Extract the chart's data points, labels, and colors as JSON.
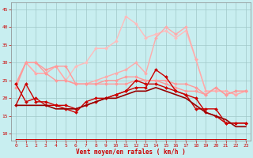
{
  "xlabel": "Vent moyen/en rafales ( km/h )",
  "xlim": [
    -0.5,
    23.5
  ],
  "ylim": [
    8,
    47
  ],
  "yticks": [
    10,
    15,
    20,
    25,
    30,
    35,
    40,
    45
  ],
  "xticks": [
    0,
    1,
    2,
    3,
    4,
    5,
    6,
    7,
    8,
    9,
    10,
    11,
    12,
    13,
    14,
    15,
    16,
    17,
    18,
    19,
    20,
    21,
    22,
    23
  ],
  "bg_color": "#c8eef0",
  "grid_color": "#a0c8c8",
  "lines": [
    {
      "x": [
        0,
        1,
        2,
        3,
        4,
        5,
        6,
        7,
        8,
        9,
        10,
        11,
        12,
        13,
        14,
        15,
        16,
        17,
        18,
        19,
        20,
        21,
        22,
        23
      ],
      "y": [
        24,
        30,
        27,
        27,
        29,
        25,
        29,
        30,
        34,
        34,
        36,
        43,
        41,
        37,
        38,
        39,
        37,
        39,
        31,
        22,
        22,
        22,
        21,
        22
      ],
      "color": "#ffbbbb",
      "lw": 1.0,
      "marker": "D",
      "ms": 2.0,
      "alpha": 1.0
    },
    {
      "x": [
        0,
        1,
        2,
        3,
        4,
        5,
        6,
        7,
        8,
        9,
        10,
        11,
        12,
        13,
        14,
        15,
        16,
        17,
        18,
        19,
        20,
        21,
        22,
        23
      ],
      "y": [
        24,
        30,
        27,
        27,
        29,
        25,
        24,
        24,
        25,
        26,
        27,
        28,
        30,
        27,
        37,
        40,
        38,
        40,
        31,
        22,
        22,
        22,
        21,
        22
      ],
      "color": "#ffaaaa",
      "lw": 1.0,
      "marker": "D",
      "ms": 2.0,
      "alpha": 1.0
    },
    {
      "x": [
        0,
        1,
        2,
        3,
        4,
        5,
        6,
        7,
        8,
        9,
        10,
        11,
        12,
        13,
        14,
        15,
        16,
        17,
        18,
        19,
        20,
        21,
        22,
        23
      ],
      "y": [
        24,
        30,
        30,
        28,
        29,
        29,
        24,
        24,
        24,
        25,
        25,
        26,
        26,
        25,
        25,
        25,
        24,
        24,
        23,
        21,
        23,
        21,
        22,
        22
      ],
      "color": "#ff9999",
      "lw": 1.0,
      "marker": "D",
      "ms": 2.0,
      "alpha": 1.0
    },
    {
      "x": [
        0,
        1,
        2,
        3,
        4,
        5,
        6,
        7,
        8,
        9,
        10,
        11,
        12,
        13,
        14,
        15,
        16,
        17,
        18,
        19,
        20,
        21,
        22,
        23
      ],
      "y": [
        23,
        30,
        30,
        27,
        25,
        25,
        24,
        24,
        24,
        24,
        24,
        24,
        25,
        25,
        25,
        24,
        23,
        22,
        22,
        21,
        23,
        21,
        22,
        22
      ],
      "color": "#ff9999",
      "lw": 1.0,
      "marker": "D",
      "ms": 2.0,
      "alpha": 1.0
    },
    {
      "x": [
        0,
        1,
        2,
        3,
        4,
        5,
        6,
        7,
        8,
        9,
        10,
        11,
        12,
        13,
        14,
        15,
        16,
        17,
        18,
        19,
        20,
        21,
        22,
        23
      ],
      "y": [
        24,
        19,
        20,
        18,
        18,
        17,
        16,
        19,
        20,
        20,
        21,
        22,
        25,
        24,
        24,
        23,
        22,
        21,
        17,
        17,
        17,
        13,
        13,
        13
      ],
      "color": "#cc0000",
      "lw": 1.0,
      "marker": "D",
      "ms": 2.0,
      "alpha": 1.0
    },
    {
      "x": [
        0,
        1,
        2,
        3,
        4,
        5,
        6,
        7,
        8,
        9,
        10,
        11,
        12,
        13,
        14,
        15,
        16,
        17,
        18,
        19,
        20,
        21,
        22,
        23
      ],
      "y": [
        18,
        24,
        19,
        19,
        18,
        18,
        17,
        18,
        19,
        20,
        21,
        22,
        23,
        23,
        28,
        26,
        22,
        21,
        20,
        16,
        15,
        13,
        13,
        13
      ],
      "color": "#cc0000",
      "lw": 1.0,
      "marker": "D",
      "ms": 2.0,
      "alpha": 1.0
    },
    {
      "x": [
        0,
        1,
        2,
        3,
        4,
        5,
        6,
        7,
        8,
        9,
        10,
        11,
        12,
        13,
        14,
        15,
        16,
        17,
        18,
        19,
        20,
        21,
        22,
        23
      ],
      "y": [
        18,
        18,
        18,
        18,
        17,
        17,
        17,
        18,
        19,
        20,
        20,
        21,
        22,
        22,
        23,
        22,
        21,
        20,
        18,
        16,
        15,
        14,
        12,
        12
      ],
      "color": "#990000",
      "lw": 1.2,
      "marker": null,
      "ms": 0,
      "alpha": 1.0
    },
    {
      "x": [
        0,
        1,
        2,
        3,
        4,
        5,
        6,
        7,
        8,
        9,
        10,
        11,
        12,
        13,
        14,
        15,
        16,
        17,
        18,
        19,
        20,
        21,
        22,
        23
      ],
      "y": [
        8.5,
        8.5,
        8.5,
        8.5,
        8.5,
        8.5,
        8.5,
        8.5,
        8.5,
        8.5,
        8.5,
        8.5,
        8.5,
        8.5,
        8.5,
        8.5,
        8.5,
        8.5,
        8.5,
        8.5,
        8.5,
        8.5,
        8.5,
        8.5
      ],
      "color": "#cc0000",
      "lw": 0.7,
      "marker": 3,
      "ms": 3.5,
      "alpha": 1.0
    }
  ]
}
